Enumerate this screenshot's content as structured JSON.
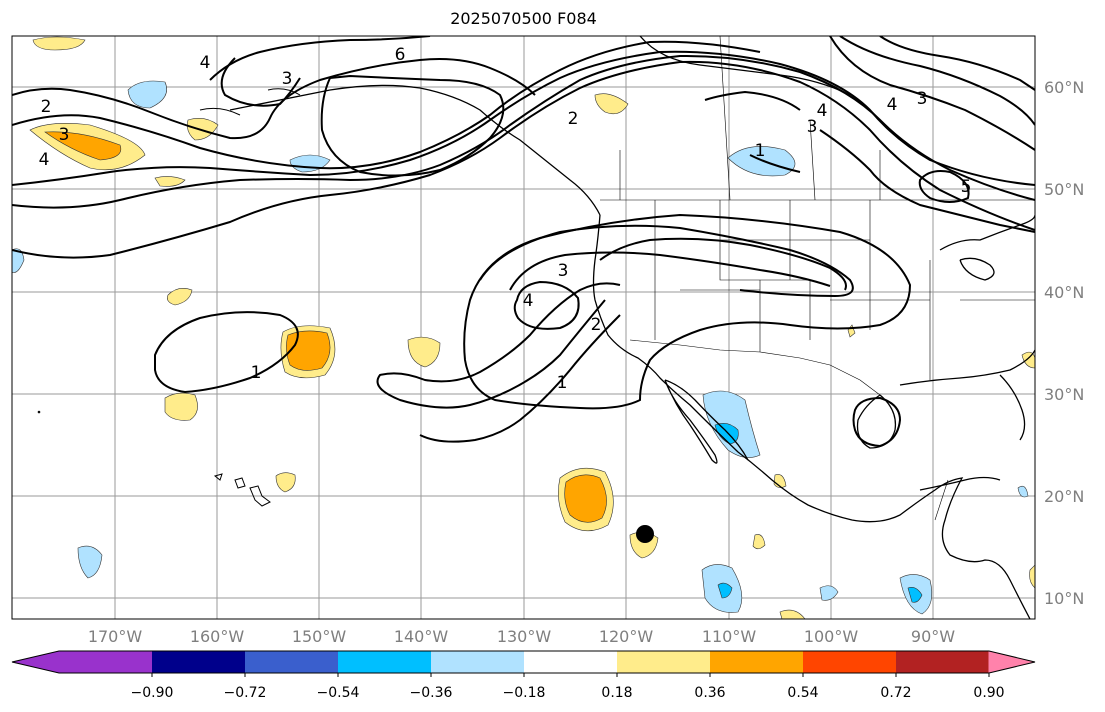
{
  "title": "2025070500 F084",
  "map": {
    "lat_labels": [
      "60°N",
      "50°N",
      "40°N",
      "30°N",
      "20°N",
      "10°N"
    ],
    "lon_labels": [
      "170°W",
      "160°W",
      "150°W",
      "140°W",
      "130°W",
      "120°W",
      "110°W",
      "100°W",
      "90°W"
    ],
    "contour_labels": [
      "2",
      "3",
      "4",
      "3",
      "4",
      "6",
      "2",
      "4",
      "3",
      "4",
      "3",
      "5",
      "3",
      "4",
      "2",
      "1",
      "1",
      "1"
    ]
  },
  "colorbar": {
    "ticks": [
      "−0.90",
      "−0.72",
      "−0.54",
      "−0.36",
      "−0.18",
      "0.18",
      "0.36",
      "0.54",
      "0.72",
      "0.90"
    ],
    "colors": [
      "#9932cc",
      "#00008b",
      "#3a5fcd",
      "#00bfff",
      "#b0e2ff",
      "#ffffff",
      "#ffec8b",
      "#ffa500",
      "#ff4500",
      "#b22222",
      "#ff82ab"
    ]
  }
}
